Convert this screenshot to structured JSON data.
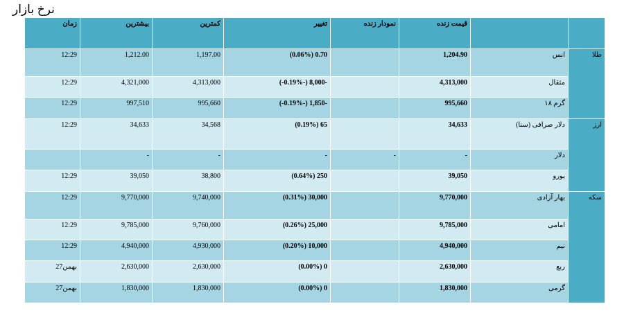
{
  "title": "نرخ بازار",
  "headers": {
    "time": "زمان",
    "high": "بیشترین",
    "low": "کمترین",
    "change": "تغییر",
    "chart": "نمودار زنده",
    "price": "قیمت زنده",
    "name": "",
    "category": ""
  },
  "categories": {
    "gold": "طلا",
    "currency": "ارز",
    "coin": "سکه"
  },
  "rows": [
    {
      "time": "12:29",
      "high": "1,212.00",
      "low": "1,197.00",
      "change": "(0.06%) 0.70",
      "chart": "",
      "price": "1,204.90",
      "name": "انس"
    },
    {
      "time": "12:29",
      "high": "4,321,000",
      "low": "4,313,000",
      "change": "(-0.19%-) 8,000-",
      "chart": "",
      "price": "4,313,000",
      "name": "مثقال"
    },
    {
      "time": "12:29",
      "high": "997,510",
      "low": "995,660",
      "change": "(-0.19%-) 1,850-",
      "chart": "",
      "price": "995,660",
      "name": "گرم ۱۸"
    },
    {
      "time": "12:29",
      "high": "34,633",
      "low": "34,568",
      "change": "(0.19%) 65",
      "chart": "",
      "price": "34,633",
      "name": "دلار صرافی (سنا)"
    },
    {
      "time": "",
      "high": "-",
      "low": "-",
      "change": "-",
      "chart": "-",
      "price": "-",
      "name": "دلار"
    },
    {
      "time": "12:29",
      "high": "39,050",
      "low": "38,800",
      "change": "(0.64%) 250",
      "chart": "",
      "price": "39,050",
      "name": "یورو"
    },
    {
      "time": "12:29",
      "high": "9,770,000",
      "low": "9,740,000",
      "change": "(0.31%) 30,000",
      "chart": "",
      "price": "9,770,000",
      "name": "بهار آزادی"
    },
    {
      "time": "12:29",
      "high": "9,785,000",
      "low": "9,760,000",
      "change": "(0.26%) 25,000",
      "chart": "",
      "price": "9,785,000",
      "name": "امامی"
    },
    {
      "time": "12:29",
      "high": "4,940,000",
      "low": "4,930,000",
      "change": "(0.20%) 10,000",
      "chart": "",
      "price": "4,940,000",
      "name": "نیم"
    },
    {
      "time": "27بهمن",
      "high": "2,630,000",
      "low": "2,630,000",
      "change": "(0.00%) 0",
      "chart": "",
      "price": "2,630,000",
      "name": "ربع"
    },
    {
      "time": "27بهمن",
      "high": "1,830,000",
      "low": "1,830,000",
      "change": "(0.00%) 0",
      "chart": "",
      "price": "1,830,000",
      "name": "گرمی"
    }
  ]
}
